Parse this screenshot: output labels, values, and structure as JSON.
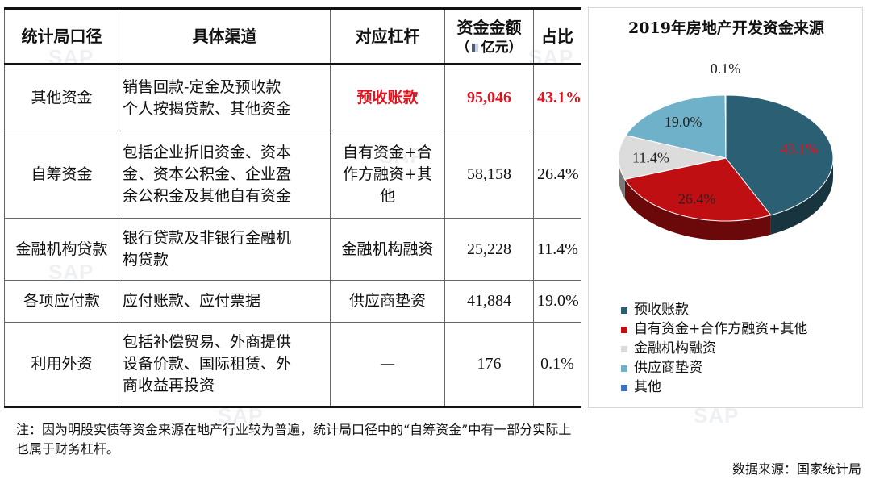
{
  "table": {
    "headers": [
      {
        "lines": [
          "统计局口径"
        ]
      },
      {
        "lines": [
          "具体渠道"
        ]
      },
      {
        "lines": [
          "对应杠杆"
        ]
      },
      {
        "lines": [
          "资金金额"
        ],
        "unit": "亿元"
      },
      {
        "lines": [
          "占比"
        ]
      }
    ],
    "rows": [
      {
        "category": "其他资金",
        "channel": [
          "销售回款-定金及预收款",
          "个人按揭贷款、其他资金"
        ],
        "leverage": [
          "预收账款"
        ],
        "amount": "95,046",
        "share": "43.1%",
        "highlight": true
      },
      {
        "category": "自筹资金",
        "channel": [
          "包括企业折旧资金、资本",
          "金、资本公积金、企业盈",
          "余公积金及其他自有资金"
        ],
        "leverage": [
          "自有资金+合",
          "作方融资+其",
          "他"
        ],
        "amount": "58,158",
        "share": "26.4%",
        "highlight": false
      },
      {
        "category": "金融机构贷款",
        "channel": [
          "银行贷款及非银行金融机",
          "构贷款"
        ],
        "leverage": [
          "金融机构融资"
        ],
        "amount": "25,228",
        "share": "11.4%",
        "highlight": false
      },
      {
        "category": "各项应付款",
        "channel": [
          "应付账款、应付票据"
        ],
        "leverage": [
          "供应商垫资"
        ],
        "amount": "41,884",
        "share": "19.0%",
        "highlight": false
      },
      {
        "category": "利用外资",
        "channel": [
          "包括补偿贸易、外商提供",
          "设备价款、国际租赁、外",
          "商收益再投资"
        ],
        "leverage": [
          "—"
        ],
        "amount": "176",
        "share": "0.1%",
        "highlight": false
      }
    ]
  },
  "chart_data": {
    "type": "pie",
    "title": "2019年房地产开发资金来源",
    "labels": [
      "预收账款",
      "自有资金+合作方融资+其他",
      "金融机构融资",
      "供应商垫资",
      "其他"
    ],
    "values": [
      43.1,
      26.4,
      11.4,
      19.0,
      0.1
    ],
    "data_labels": [
      "43.1%",
      "26.4%",
      "11.4%",
      "19.0%",
      "0.1%"
    ],
    "colors": [
      "#2b5f73",
      "#c00f12",
      "#dcdcdc",
      "#6fb1c8",
      "#3f72c0"
    ],
    "legend_position": "bottom-left",
    "style": "3d"
  },
  "note": "注：因为明股实债等资金来源在地产行业较为普遍，统计局口径中的“自筹资金”中有一部分实际上也属于财务杠杆。",
  "source": "数据来源：国家统计局",
  "watermark": "SAP"
}
